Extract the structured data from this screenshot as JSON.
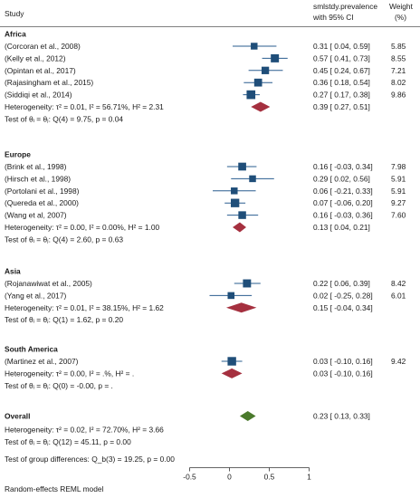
{
  "chart_data": {
    "type": "forest",
    "header": {
      "study": "Study",
      "effect_line1": "smlstdy.prevalence",
      "effect_line2": "with 95% CI",
      "weight_line1": "Weight",
      "weight_line2": "(%)"
    },
    "xaxis": {
      "min": -0.5,
      "max": 1,
      "ticks": [
        -0.5,
        0,
        0.5,
        1
      ],
      "tick_labels": [
        "-0.5",
        "0",
        "0.5",
        "1"
      ]
    },
    "groups": [
      {
        "name": "Africa",
        "studies": [
          {
            "label": "(Corcoran et al., 2008)",
            "est": 0.31,
            "lo": 0.04,
            "hi": 0.59,
            "ci_text": "0.31 [  0.04,  0.59]",
            "weight": "5.85",
            "w": 5.85
          },
          {
            "label": "(Kelly et al., 2012)",
            "est": 0.57,
            "lo": 0.41,
            "hi": 0.73,
            "ci_text": "0.57 [  0.41,  0.73]",
            "weight": "8.55",
            "w": 8.55
          },
          {
            "label": "(Opintan et al., 2017)",
            "est": 0.45,
            "lo": 0.24,
            "hi": 0.67,
            "ci_text": "0.45 [  0.24,  0.67]",
            "weight": "7.21",
            "w": 7.21
          },
          {
            "label": "(Rajasingham et al., 2015)",
            "est": 0.36,
            "lo": 0.18,
            "hi": 0.54,
            "ci_text": "0.36 [  0.18,  0.54]",
            "weight": "8.02",
            "w": 8.02
          },
          {
            "label": "(Siddiqi et al., 2014)",
            "est": 0.27,
            "lo": 0.17,
            "hi": 0.38,
            "ci_text": "0.27 [  0.17,  0.38]",
            "weight": "9.86",
            "w": 9.86
          }
        ],
        "pooled": {
          "est": 0.39,
          "lo": 0.27,
          "hi": 0.51,
          "ci_text": "0.39 [  0.27,  0.51]"
        },
        "heterogeneity": "Heterogeneity: τ² = 0.01, I² = 56.71%, H² = 2.31",
        "test": "Test of θᵢ = θⱼ: Q(4) = 9.75, p = 0.04"
      },
      {
        "name": "Europe",
        "studies": [
          {
            "label": "(Brink et al., 1998)",
            "est": 0.16,
            "lo": -0.03,
            "hi": 0.34,
            "ci_text": "0.16 [ -0.03,  0.34]",
            "weight": "7.98",
            "w": 7.98
          },
          {
            "label": "(Hirsch et al., 1998)",
            "est": 0.29,
            "lo": 0.02,
            "hi": 0.56,
            "ci_text": "0.29 [  0.02,  0.56]",
            "weight": "5.91",
            "w": 5.91
          },
          {
            "label": "(Portolani et al., 1998)",
            "est": 0.06,
            "lo": -0.21,
            "hi": 0.33,
            "ci_text": "0.06 [ -0.21,  0.33]",
            "weight": "5.91",
            "w": 5.91
          },
          {
            "label": "(Quereda et al., 2000)",
            "est": 0.07,
            "lo": -0.06,
            "hi": 0.2,
            "ci_text": "0.07 [ -0.06,  0.20]",
            "weight": "9.27",
            "w": 9.27
          },
          {
            "label": "(Wang et al, 2007)",
            "est": 0.16,
            "lo": -0.03,
            "hi": 0.36,
            "ci_text": "0.16 [ -0.03,  0.36]",
            "weight": "7.60",
            "w": 7.6
          }
        ],
        "pooled": {
          "est": 0.13,
          "lo": 0.04,
          "hi": 0.21,
          "ci_text": "0.13 [  0.04,  0.21]"
        },
        "heterogeneity": "Heterogeneity: τ² = 0.00, I² = 0.00%, H² = 1.00",
        "test": "Test of θᵢ = θⱼ: Q(4) = 2.60, p = 0.63"
      },
      {
        "name": "Asia",
        "studies": [
          {
            "label": "(Rojanawiwat et al., 2005)",
            "est": 0.22,
            "lo": 0.06,
            "hi": 0.39,
            "ci_text": "0.22 [  0.06,  0.39]",
            "weight": "8.42",
            "w": 8.42
          },
          {
            "label": "(Yang et al., 2017)",
            "est": 0.02,
            "lo": -0.25,
            "hi": 0.28,
            "ci_text": "0.02 [ -0.25,  0.28]",
            "weight": "6.01",
            "w": 6.01
          }
        ],
        "pooled": {
          "est": 0.15,
          "lo": -0.04,
          "hi": 0.34,
          "ci_text": "0.15 [ -0.04,  0.34]"
        },
        "heterogeneity": "Heterogeneity: τ² = 0.01, I² = 38.15%, H² = 1.62",
        "test": "Test of θᵢ = θⱼ: Q(1) = 1.62, p = 0.20"
      },
      {
        "name": "South America",
        "studies": [
          {
            "label": "(Martinez et al., 2007)",
            "est": 0.03,
            "lo": -0.1,
            "hi": 0.16,
            "ci_text": "0.03 [ -0.10,  0.16]",
            "weight": "9.42",
            "w": 9.42
          }
        ],
        "pooled": {
          "est": 0.03,
          "lo": -0.1,
          "hi": 0.16,
          "ci_text": "0.03 [ -0.10,  0.16]"
        },
        "heterogeneity": "Heterogeneity: τ² = 0.00, I² = .%, H² = .",
        "test": "Test of θᵢ = θⱼ: Q(0) = -0.00, p = ."
      }
    ],
    "overall": {
      "label": "Overall",
      "est": 0.23,
      "lo": 0.13,
      "hi": 0.33,
      "ci_text": "0.23 [  0.13,  0.33]",
      "heterogeneity": "Heterogeneity: τ² = 0.02, I² = 72.70%, H² = 3.66",
      "test": "Test of θᵢ = θⱼ: Q(12) = 45.11, p = 0.00"
    },
    "group_test": "Test of group differences: Q_b(3) = 19.25, p = 0.00",
    "footnote": "Random-effects REML model",
    "colors": {
      "study_marker": "#1f4e79",
      "subgroup_diamond": "#a5303f",
      "overall_diamond": "#4a7a2c",
      "ci_line": "#2a5d8f"
    }
  }
}
